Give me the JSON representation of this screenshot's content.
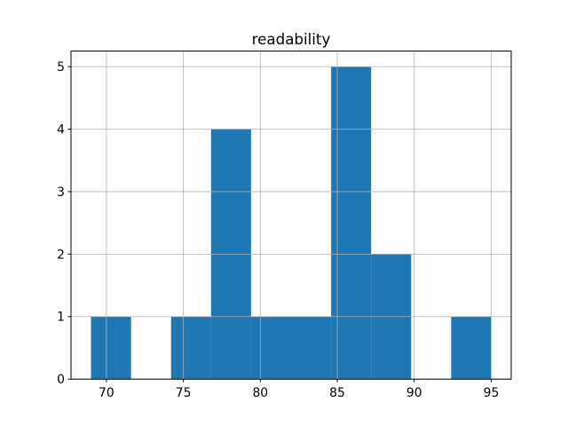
{
  "figure": {
    "background": "#ffffff"
  },
  "chart_data": {
    "type": "histogram",
    "title": "readability",
    "xlabel": "",
    "ylabel": "",
    "bin_edges": [
      69.0,
      71.6,
      74.2,
      76.8,
      79.4,
      82.0,
      84.6,
      87.2,
      89.8,
      92.4,
      95.0
    ],
    "counts": [
      1,
      0,
      1,
      4,
      1,
      1,
      5,
      2,
      0,
      1
    ],
    "xticks": [
      70,
      75,
      80,
      85,
      90,
      95
    ],
    "yticks": [
      0,
      1,
      2,
      3,
      4,
      5
    ],
    "xlim": [
      67.7,
      96.3
    ],
    "ylim": [
      0,
      5.25
    ],
    "grid": true,
    "grid_above_bars": true,
    "legend": null,
    "bar_color": "#1f77b4",
    "grid_color": "#b0b0b0",
    "spine_color": "#000000",
    "text_color": "#000000"
  }
}
